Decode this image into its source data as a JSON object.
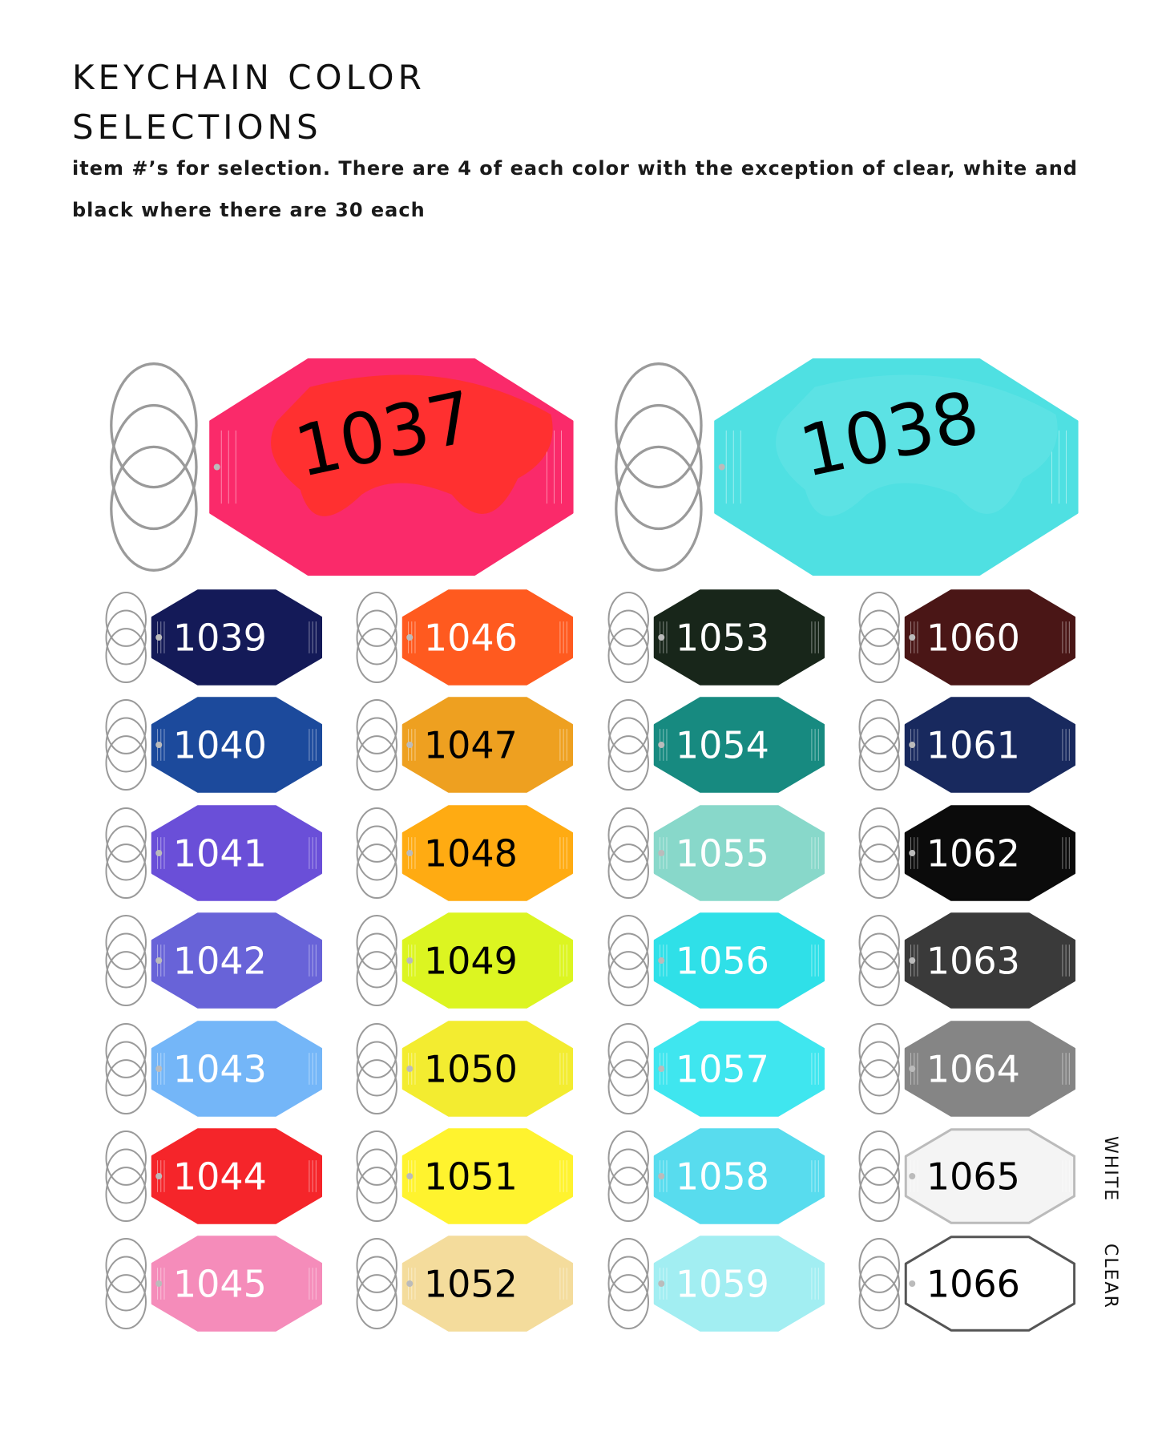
{
  "header": {
    "title_line1": "KEYCHAIN COLOR",
    "title_line2": "SELECTIONS",
    "subtitle": "item #’s for selection. There are 4 of each color with the exception of clear, white and black where there are 30 each"
  },
  "featured": [
    {
      "number": "1037",
      "color": "#fa2a6a",
      "patch": "#ff3030",
      "text_color": "#000000"
    },
    {
      "number": "1038",
      "color": "#4fe0e2",
      "patch": "#5ce2e4",
      "text_color": "#000000"
    }
  ],
  "columns": [
    [
      {
        "number": "1039",
        "color": "#141a58",
        "text_color": "#ffffff"
      },
      {
        "number": "1040",
        "color": "#1c4a9c",
        "text_color": "#ffffff"
      },
      {
        "number": "1041",
        "color": "#6a4fd8",
        "text_color": "#ffffff"
      },
      {
        "number": "1042",
        "color": "#6863d8",
        "text_color": "#ffffff"
      },
      {
        "number": "1043",
        "color": "#74b6f8",
        "text_color": "#ffffff"
      },
      {
        "number": "1044",
        "color": "#f5252a",
        "text_color": "#ffffff"
      },
      {
        "number": "1045",
        "color": "#f58cba",
        "text_color": "#ffffff"
      }
    ],
    [
      {
        "number": "1046",
        "color": "#ff5a1f",
        "text_color": "#ffffff"
      },
      {
        "number": "1047",
        "color": "#eea020",
        "text_color": "#000000"
      },
      {
        "number": "1048",
        "color": "#ffab12",
        "text_color": "#000000"
      },
      {
        "number": "1049",
        "color": "#dcf521",
        "text_color": "#000000"
      },
      {
        "number": "1050",
        "color": "#f3ec30",
        "text_color": "#000000"
      },
      {
        "number": "1051",
        "color": "#fff32e",
        "text_color": "#000000"
      },
      {
        "number": "1052",
        "color": "#f4dc9c",
        "text_color": "#000000"
      }
    ],
    [
      {
        "number": "1053",
        "color": "#18261a",
        "text_color": "#ffffff"
      },
      {
        "number": "1054",
        "color": "#178a80",
        "text_color": "#ffffff"
      },
      {
        "number": "1055",
        "color": "#88d8ca",
        "text_color": "#ffffff"
      },
      {
        "number": "1056",
        "color": "#2fe0e8",
        "text_color": "#ffffff"
      },
      {
        "number": "1057",
        "color": "#3fe6ef",
        "text_color": "#ffffff"
      },
      {
        "number": "1058",
        "color": "#58dcee",
        "text_color": "#ffffff"
      },
      {
        "number": "1059",
        "color": "#a2eef2",
        "text_color": "#ffffff"
      }
    ],
    [
      {
        "number": "1060",
        "color": "#4a1616",
        "text_color": "#ffffff"
      },
      {
        "number": "1061",
        "color": "#18295e",
        "text_color": "#ffffff"
      },
      {
        "number": "1062",
        "color": "#0b0b0b",
        "text_color": "#ffffff"
      },
      {
        "number": "1063",
        "color": "#3a3a3a",
        "text_color": "#ffffff"
      },
      {
        "number": "1064",
        "color": "#858585",
        "text_color": "#ffffff"
      },
      {
        "number": "1065",
        "color": "#f4f4f4",
        "text_color": "#000000",
        "label": "WHITE"
      },
      {
        "number": "1066",
        "color": "#ffffff",
        "text_color": "#000000",
        "label": "CLEAR"
      }
    ]
  ]
}
